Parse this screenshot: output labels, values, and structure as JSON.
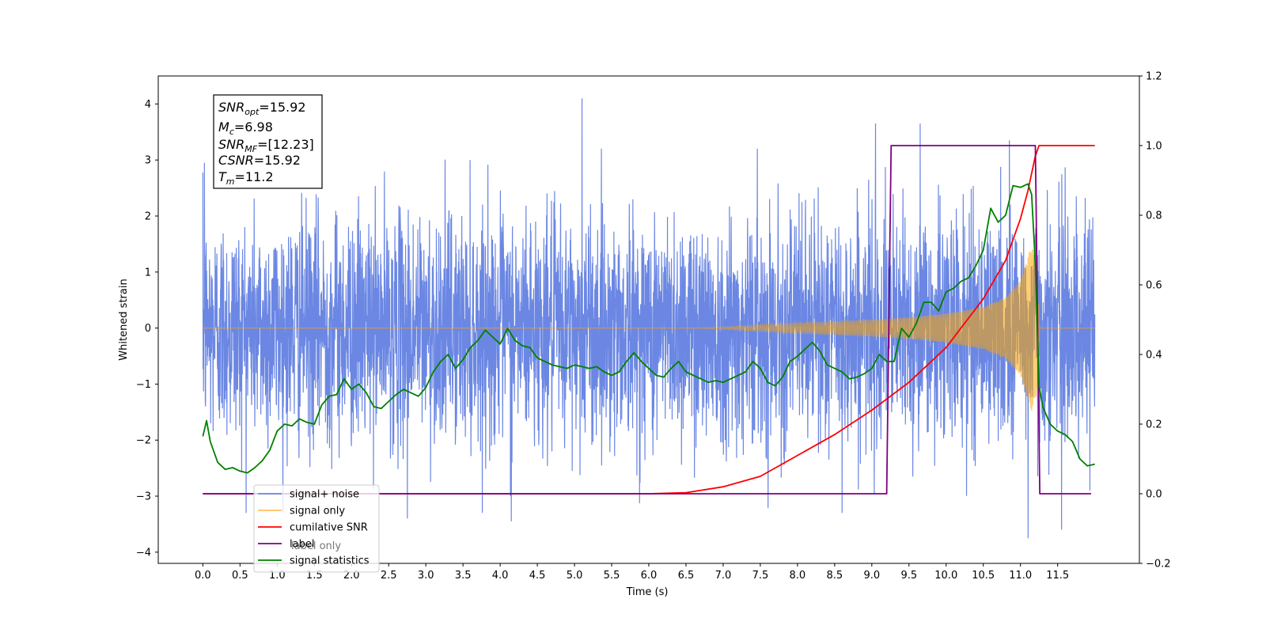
{
  "chart_data": {
    "type": "line",
    "xlabel": "Time (s)",
    "ylabel": "Whitened strain",
    "xlim": [
      -0.6,
      12.6
    ],
    "ylim": [
      -4.2,
      4.5
    ],
    "y2lim": [
      -0.2,
      1.2
    ],
    "x_ticks": [
      "0.0",
      "0.5",
      "1.0",
      "1.5",
      "2.0",
      "2.5",
      "3.0",
      "3.5",
      "4.0",
      "4.5",
      "5.0",
      "5.5",
      "6.0",
      "6.5",
      "7.0",
      "7.5",
      "8.0",
      "8.5",
      "9.0",
      "9.5",
      "10.0",
      "10.5",
      "11.0",
      "11.5"
    ],
    "y_ticks": [
      "4",
      "3",
      "2",
      "1",
      "0",
      "−1",
      "−2",
      "−3",
      "−4"
    ],
    "y2_ticks": [
      "1.2",
      "1.0",
      "0.8",
      "0.6",
      "0.4",
      "0.2",
      "0.0",
      "−0.2"
    ],
    "grid": false,
    "legend_position": "lower-left",
    "colors": {
      "signal_noise": "#6b87e3",
      "signal_only": "#ffa500",
      "cumulative_snr": "#ff0000",
      "label": "#800080",
      "signal_statistics": "#008000"
    },
    "legend": [
      {
        "name": "signal+ noise",
        "color": "#6b87e3"
      },
      {
        "name": "signal only",
        "color": "#ffbf60"
      },
      {
        "name": "cumilative SNR",
        "color": "#ff0000"
      },
      {
        "name": "label",
        "color": "#800080"
      },
      {
        "name": "signal statistics",
        "color": "#008000"
      }
    ],
    "hidden_legend_text": "label only",
    "info_box": {
      "snr_opt_sym": "SNR",
      "snr_opt_sub": "opt",
      "snr_opt_val": "=15.92",
      "mc_sym": "M",
      "mc_sub": "c",
      "mc_val": "=6.98",
      "snr_mf_sym": "SNR",
      "snr_mf_sub": "MF",
      "snr_mf_val": "=[12.23]",
      "csnr_sym": "CSNR",
      "csnr_val": "=15.92",
      "tm_sym": "T",
      "tm_sub": "m",
      "tm_val": "=11.2"
    },
    "series": [
      {
        "name": "signal+ noise",
        "axis": "left",
        "t_range": [
          0.0,
          12.0
        ],
        "envelope_sigma": 1.0,
        "notable_peaks": [
          [
            0.02,
            2.95
          ],
          [
            5.1,
            4.1
          ],
          [
            9.05,
            3.65
          ],
          [
            9.65,
            3.65
          ],
          [
            10.85,
            3.35
          ],
          [
            11.75,
            2.35
          ],
          [
            11.1,
            -3.75
          ],
          [
            4.15,
            -3.45
          ],
          [
            2.75,
            -3.4
          ],
          [
            8.6,
            -3.3
          ],
          [
            11.55,
            -3.6
          ]
        ]
      },
      {
        "name": "signal only",
        "axis": "left",
        "amplitude_envelope": {
          "t": [
            0.0,
            6.5,
            7.0,
            7.5,
            8.0,
            8.5,
            9.0,
            9.5,
            10.0,
            10.5,
            10.8,
            11.0,
            11.15,
            11.22,
            11.26,
            12.0
          ],
          "amp": [
            0.0,
            0.0,
            0.02,
            0.06,
            0.09,
            0.12,
            0.15,
            0.19,
            0.26,
            0.38,
            0.55,
            0.85,
            1.5,
            1.2,
            0.0,
            0.0
          ]
        }
      },
      {
        "name": "cumilative SNR",
        "axis": "right",
        "x": [
          0.0,
          6.0,
          6.5,
          7.0,
          7.5,
          8.0,
          8.5,
          9.0,
          9.5,
          10.0,
          10.5,
          10.8,
          11.0,
          11.1,
          11.2,
          11.25,
          12.0
        ],
        "y": [
          0.0,
          0.0,
          0.003,
          0.02,
          0.05,
          0.11,
          0.17,
          0.24,
          0.32,
          0.42,
          0.56,
          0.67,
          0.79,
          0.87,
          0.97,
          1.0,
          1.0
        ]
      },
      {
        "name": "label",
        "axis": "right",
        "x": [
          0.0,
          9.2,
          9.26,
          11.2,
          11.26,
          11.95
        ],
        "y": [
          0.0,
          0.0,
          1.0,
          1.0,
          0.0,
          0.0
        ]
      },
      {
        "name": "signal statistics",
        "axis": "right",
        "x": [
          0.0,
          0.05,
          0.1,
          0.2,
          0.3,
          0.4,
          0.5,
          0.6,
          0.7,
          0.8,
          0.9,
          1.0,
          1.1,
          1.2,
          1.3,
          1.4,
          1.5,
          1.6,
          1.7,
          1.8,
          1.9,
          2.0,
          2.1,
          2.2,
          2.3,
          2.4,
          2.5,
          2.6,
          2.7,
          2.8,
          2.9,
          3.0,
          3.1,
          3.2,
          3.3,
          3.4,
          3.5,
          3.6,
          3.7,
          3.8,
          3.9,
          4.0,
          4.1,
          4.2,
          4.3,
          4.4,
          4.5,
          4.6,
          4.7,
          4.8,
          4.9,
          5.0,
          5.1,
          5.2,
          5.3,
          5.4,
          5.5,
          5.6,
          5.7,
          5.8,
          5.9,
          6.0,
          6.1,
          6.2,
          6.3,
          6.4,
          6.5,
          6.6,
          6.7,
          6.8,
          6.9,
          7.0,
          7.1,
          7.2,
          7.3,
          7.4,
          7.5,
          7.6,
          7.7,
          7.8,
          7.9,
          8.0,
          8.1,
          8.2,
          8.3,
          8.4,
          8.5,
          8.6,
          8.7,
          8.8,
          8.9,
          9.0,
          9.1,
          9.2,
          9.3,
          9.4,
          9.5,
          9.6,
          9.7,
          9.8,
          9.9,
          10.0,
          10.1,
          10.2,
          10.3,
          10.4,
          10.5,
          10.6,
          10.7,
          10.8,
          10.9,
          11.0,
          11.1,
          11.15,
          11.2,
          11.25,
          11.3,
          11.4,
          11.5,
          11.6,
          11.7,
          11.8,
          11.9,
          12.0
        ],
        "y": [
          0.165,
          0.21,
          0.15,
          0.09,
          0.07,
          0.075,
          0.065,
          0.06,
          0.075,
          0.095,
          0.125,
          0.18,
          0.2,
          0.195,
          0.215,
          0.205,
          0.2,
          0.255,
          0.28,
          0.285,
          0.33,
          0.3,
          0.315,
          0.29,
          0.25,
          0.245,
          0.265,
          0.285,
          0.3,
          0.29,
          0.28,
          0.305,
          0.35,
          0.38,
          0.4,
          0.36,
          0.385,
          0.42,
          0.44,
          0.47,
          0.45,
          0.43,
          0.475,
          0.44,
          0.425,
          0.42,
          0.39,
          0.38,
          0.37,
          0.365,
          0.36,
          0.37,
          0.365,
          0.36,
          0.365,
          0.35,
          0.34,
          0.35,
          0.38,
          0.405,
          0.38,
          0.36,
          0.34,
          0.335,
          0.36,
          0.38,
          0.35,
          0.34,
          0.33,
          0.32,
          0.325,
          0.32,
          0.33,
          0.34,
          0.35,
          0.38,
          0.36,
          0.32,
          0.31,
          0.335,
          0.38,
          0.395,
          0.415,
          0.435,
          0.41,
          0.37,
          0.36,
          0.35,
          0.33,
          0.335,
          0.345,
          0.36,
          0.4,
          0.38,
          0.38,
          0.475,
          0.45,
          0.49,
          0.55,
          0.55,
          0.525,
          0.58,
          0.59,
          0.61,
          0.62,
          0.655,
          0.7,
          0.82,
          0.78,
          0.8,
          0.885,
          0.88,
          0.89,
          0.86,
          0.66,
          0.31,
          0.25,
          0.2,
          0.18,
          0.17,
          0.15,
          0.1,
          0.08,
          0.085
        ]
      }
    ]
  }
}
